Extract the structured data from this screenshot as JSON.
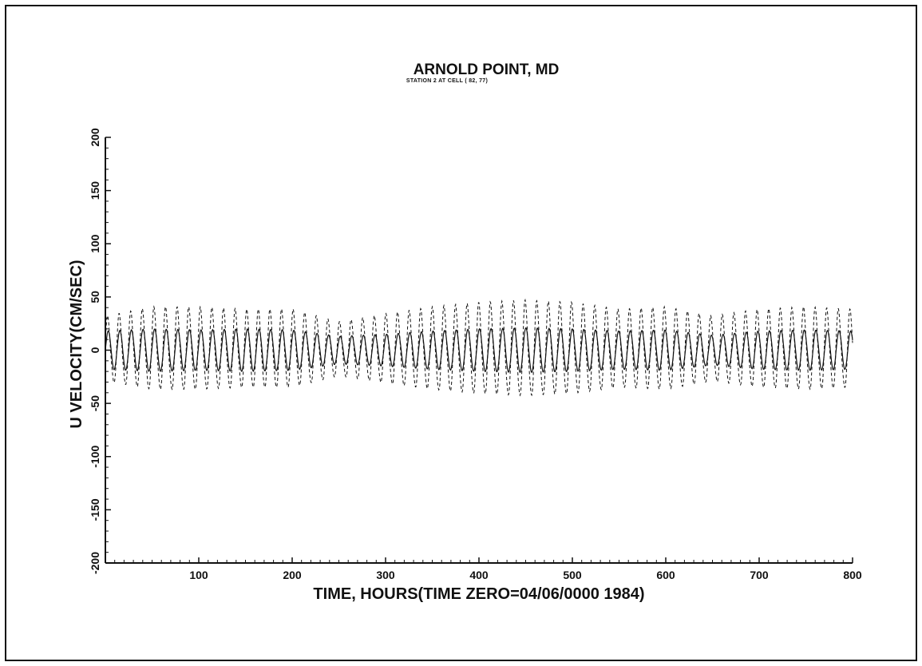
{
  "chart_data": {
    "type": "line",
    "title": "ARNOLD POINT, MD",
    "subtitle": "STATION 2 AT CELL ( 82, 77)",
    "xlabel": "TIME, HOURS(TIME ZERO=04/06/0000 1984)",
    "ylabel": "U VELOCITY(CM/SEC)",
    "xlim": [
      0,
      800
    ],
    "ylim": [
      -200,
      200
    ],
    "x_ticks": [
      "100",
      "200",
      "300",
      "400",
      "500",
      "600",
      "700",
      "800"
    ],
    "y_ticks": [
      "-200",
      "-150",
      "-100",
      "-50",
      "0",
      "50",
      "100",
      "150",
      "200"
    ],
    "grid": false,
    "legend": "none",
    "series": [
      {
        "style": "solid",
        "period_hours": 12.42,
        "envelope_hours": [
          0,
          50,
          100,
          150,
          200,
          250,
          300,
          350,
          400,
          450,
          500,
          550,
          600,
          650,
          700,
          750,
          800
        ],
        "envelope_amplitude": [
          18,
          20,
          19,
          20,
          19,
          13,
          15,
          18,
          20,
          21,
          20,
          18,
          19,
          14,
          18,
          19,
          18
        ]
      },
      {
        "style": "dashed",
        "period_hours": 12.42,
        "envelope_hours": [
          0,
          50,
          100,
          150,
          200,
          250,
          300,
          350,
          400,
          450,
          500,
          550,
          600,
          650,
          700,
          750,
          800
        ],
        "envelope_amplitude": [
          30,
          38,
          38,
          36,
          36,
          25,
          32,
          38,
          42,
          44,
          42,
          36,
          38,
          30,
          36,
          38,
          36
        ]
      }
    ]
  }
}
